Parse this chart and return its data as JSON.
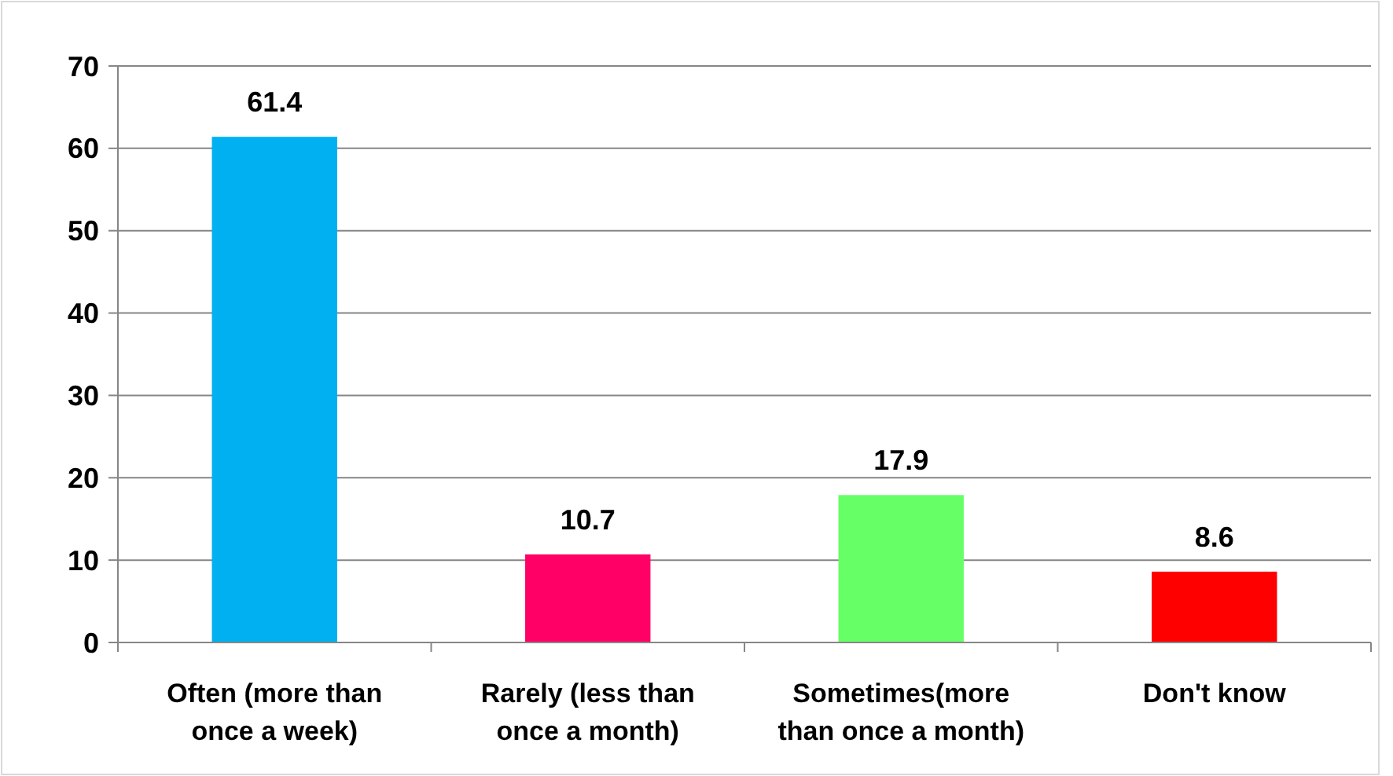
{
  "chart_data": {
    "type": "bar",
    "categories": [
      "Often (more than once a week)",
      "Rarely (less than once a month)",
      "Sometimes(more than once a month)",
      "Don't know"
    ],
    "values": [
      61.4,
      10.7,
      17.9,
      8.6
    ],
    "colors": [
      "#00b0f0",
      "#ff0066",
      "#66ff66",
      "#ff0000"
    ],
    "ylim": [
      0,
      70
    ],
    "yticks": [
      0,
      10,
      20,
      30,
      40,
      50,
      60,
      70
    ],
    "grid": "y",
    "data_labels": true
  }
}
